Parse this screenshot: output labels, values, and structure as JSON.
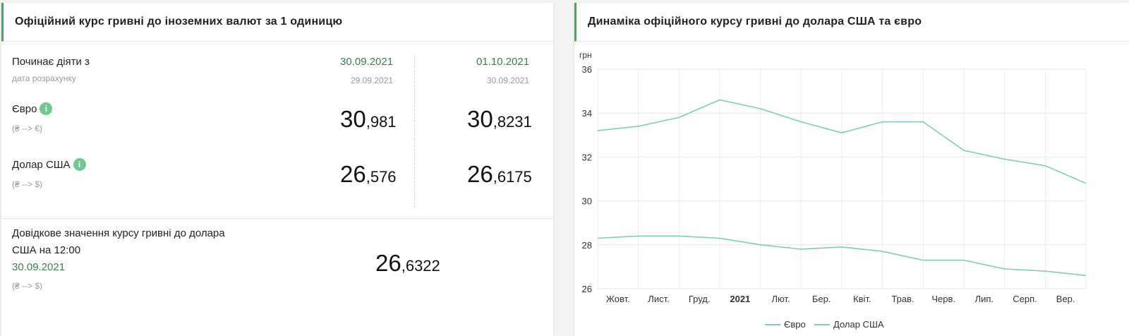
{
  "left": {
    "title": "Офіційний курс гривні до іноземних валют за 1 одиницю",
    "starts_label": "Починає діяти з",
    "calc_date_label": "дата розрахунку",
    "col1": {
      "date": "30.09.2021",
      "calc_date": "29.09.2021"
    },
    "col2": {
      "date": "01.10.2021",
      "calc_date": "30.09.2021"
    },
    "euro": {
      "label": "Євро",
      "info": "i",
      "sub": "(₴ --> €)",
      "col1_int": "30",
      "col1_frac": ",981",
      "col2_int": "30",
      "col2_frac": ",8231"
    },
    "usd": {
      "label": "Долар США",
      "info": "i",
      "sub": "(₴ --> $)",
      "col1_int": "26",
      "col1_frac": ",576",
      "col2_int": "26",
      "col2_frac": ",6175"
    },
    "reference": {
      "label_line1": "Довідкове значення курсу гривні до долара",
      "label_line2": "США на 12:00",
      "date": "30.09.2021",
      "sub": "(₴ --> $)",
      "int": "26",
      "frac": ",6322"
    }
  },
  "right": {
    "title": "Динаміка офіційного курсу гривні до долара США та євро"
  },
  "chart_data": {
    "type": "line",
    "ylabel": "грн",
    "ylim": [
      26,
      36
    ],
    "yticks": [
      "36",
      "34",
      "32",
      "30",
      "28",
      "26"
    ],
    "x_tick_labels": [
      "Жовт.",
      "Лист.",
      "Груд.",
      "2021",
      "Лют.",
      "Бер.",
      "Квіт.",
      "Трав.",
      "Черв.",
      "Лип.",
      "Серп.",
      "Вер."
    ],
    "grid": true,
    "legend_position": "bottom",
    "color": "#7fcdb3",
    "x": [
      "2020-10",
      "2020-11",
      "2020-12",
      "2021-01",
      "2021-02",
      "2021-03",
      "2021-04",
      "2021-05",
      "2021-06",
      "2021-07",
      "2021-08",
      "2021-09",
      "2021-10"
    ],
    "series": [
      {
        "name": "Євро",
        "values": [
          33.2,
          33.4,
          33.8,
          34.6,
          34.2,
          33.6,
          33.1,
          33.6,
          33.6,
          32.3,
          31.9,
          31.6,
          30.8
        ]
      },
      {
        "name": "Долар США",
        "values": [
          28.3,
          28.4,
          28.4,
          28.3,
          28.0,
          27.8,
          27.9,
          27.7,
          27.3,
          27.3,
          26.9,
          26.8,
          26.6
        ]
      }
    ]
  }
}
